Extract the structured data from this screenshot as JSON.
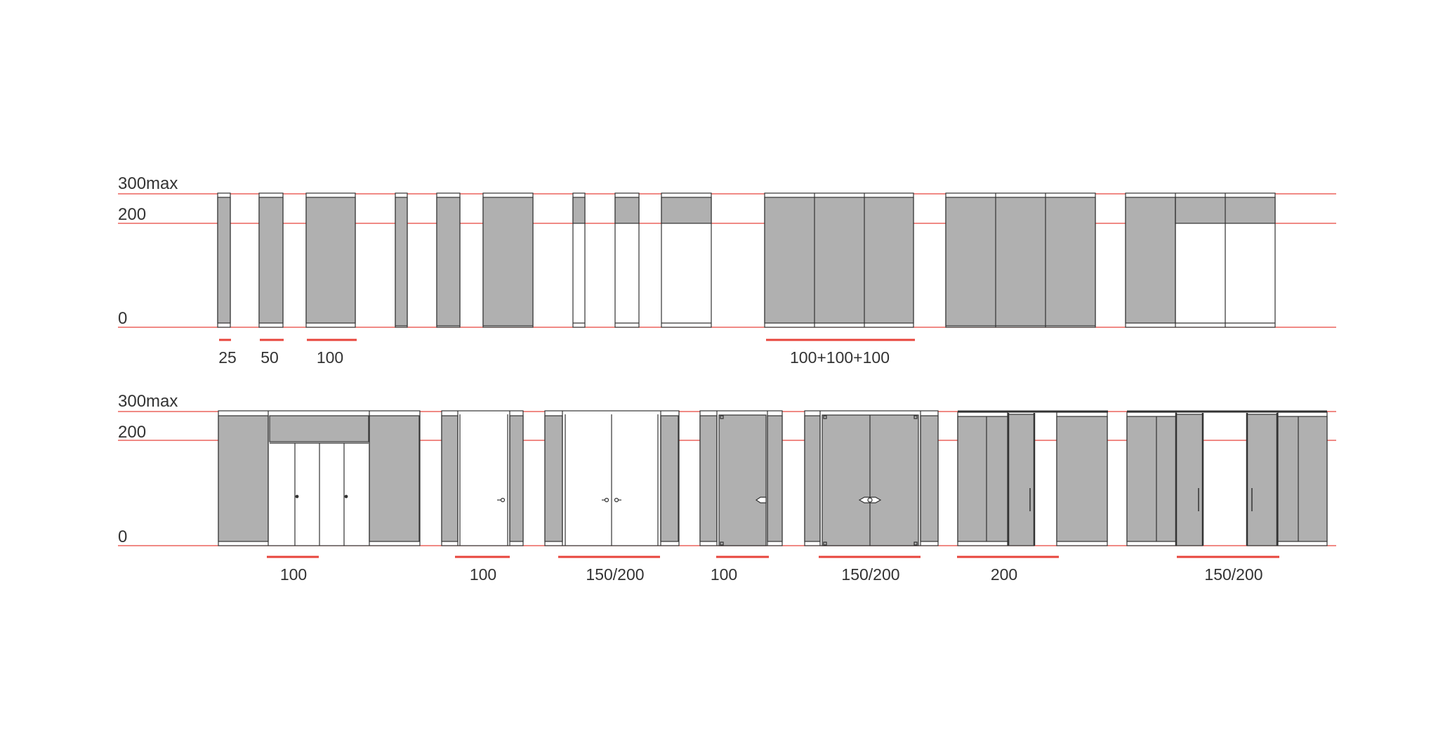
{
  "colors": {
    "guide_line": "#e8453c",
    "panel_fill": "#b0b0b0",
    "frame_stroke": "#333333",
    "label": "#333333"
  },
  "top_row": {
    "levels": {
      "max": "300max",
      "mid": "200",
      "zero": "0"
    },
    "dimensions": [
      "25",
      "50",
      "100",
      "100+100+100"
    ]
  },
  "bottom_row": {
    "levels": {
      "max": "300max",
      "mid": "200",
      "zero": "0"
    },
    "dimensions": [
      "100",
      "100",
      "150/200",
      "100",
      "150/200",
      "200",
      "150/200"
    ]
  }
}
